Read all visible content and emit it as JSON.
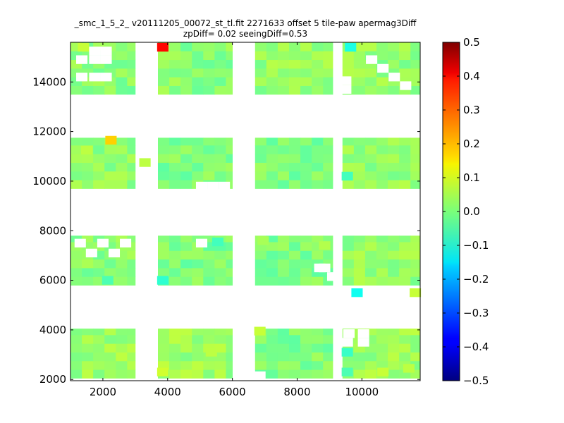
{
  "chart_data": {
    "type": "heatmap",
    "title": "_smc_1_5_2_ v20111205_00072_st_tl.fit 2271633 offset 5 tile-paw apermag3Diff\nzpDiff= 0.02 seeingDiff=0.53",
    "xlabel": "",
    "ylabel": "",
    "xlim": [
      1000,
      11800
    ],
    "ylim": [
      1950,
      15600
    ],
    "x_ticks": [
      2000,
      4000,
      6000,
      8000,
      10000
    ],
    "y_ticks": [
      2000,
      4000,
      6000,
      8000,
      10000,
      12000,
      14000
    ],
    "colorbar": {
      "vmin": -0.5,
      "vmax": 0.5,
      "ticks": [
        "0.5",
        "0.4",
        "0.3",
        "0.2",
        "0.1",
        "0.0",
        "−0.1",
        "−0.2",
        "−0.3",
        "−0.4",
        "−0.5"
      ],
      "colormap": "jet"
    },
    "cell_size": [
      350,
      350
    ],
    "grid": false,
    "blocks": [
      {
        "x": [
          1000,
          3000
        ],
        "y": [
          2050,
          4050
        ],
        "base": 0.03
      },
      {
        "x": [
          3700,
          6000
        ],
        "y": [
          2050,
          4050
        ],
        "base": 0.03
      },
      {
        "x": [
          6700,
          9100
        ],
        "y": [
          2050,
          4050
        ],
        "base": 0.0
      },
      {
        "x": [
          9400,
          11800
        ],
        "y": [
          2050,
          4050
        ],
        "base": 0.03
      },
      {
        "x": [
          1000,
          3000
        ],
        "y": [
          5800,
          7800
        ],
        "base": 0.01
      },
      {
        "x": [
          3700,
          6000
        ],
        "y": [
          5800,
          7800
        ],
        "base": 0.0
      },
      {
        "x": [
          6700,
          9100
        ],
        "y": [
          5800,
          7800
        ],
        "base": 0.0
      },
      {
        "x": [
          9400,
          11800
        ],
        "y": [
          5800,
          7800
        ],
        "base": 0.02
      },
      {
        "x": [
          1000,
          3000
        ],
        "y": [
          9700,
          11750
        ],
        "base": 0.02
      },
      {
        "x": [
          3700,
          6000
        ],
        "y": [
          9700,
          11750
        ],
        "base": 0.0
      },
      {
        "x": [
          6700,
          9100
        ],
        "y": [
          9700,
          11750
        ],
        "base": 0.0
      },
      {
        "x": [
          9400,
          11800
        ],
        "y": [
          9700,
          11750
        ],
        "base": 0.02
      },
      {
        "x": [
          1000,
          3000
        ],
        "y": [
          13500,
          15600
        ],
        "base": 0.01
      },
      {
        "x": [
          3700,
          6000
        ],
        "y": [
          13500,
          15600
        ],
        "base": 0.01
      },
      {
        "x": [
          6700,
          9100
        ],
        "y": [
          13500,
          15600
        ],
        "base": 0.02
      },
      {
        "x": [
          9400,
          11800
        ],
        "y": [
          13500,
          15600
        ],
        "base": 0.02
      }
    ],
    "cells": [
      {
        "x": 1400,
        "y": 15400,
        "v": 0.07
      },
      {
        "x": 3850,
        "y": 15400,
        "v": 0.37
      },
      {
        "x": 2250,
        "y": 11650,
        "v": 0.17
      },
      {
        "x": 1500,
        "y": 11250,
        "v": 0.06
      },
      {
        "x": 3300,
        "y": 10750,
        "v": 0.06
      },
      {
        "x": 3850,
        "y": 6000,
        "v": -0.08
      },
      {
        "x": 2150,
        "y": 6000,
        "v": -0.05
      },
      {
        "x": 5550,
        "y": 7550,
        "v": -0.06
      },
      {
        "x": 9650,
        "y": 15400,
        "v": -0.1
      },
      {
        "x": 9550,
        "y": 10200,
        "v": -0.06
      },
      {
        "x": 9850,
        "y": 5500,
        "v": -0.11
      },
      {
        "x": 11650,
        "y": 5500,
        "v": 0.07
      },
      {
        "x": 6850,
        "y": 3950,
        "v": 0.07
      },
      {
        "x": 5350,
        "y": 3100,
        "v": 0.06
      },
      {
        "x": 9550,
        "y": 3100,
        "v": -0.07
      },
      {
        "x": 9550,
        "y": 2300,
        "v": -0.05
      },
      {
        "x": 3850,
        "y": 2300,
        "v": 0.08
      },
      {
        "x": 11450,
        "y": 2450,
        "v": 0.06
      },
      {
        "x": 10650,
        "y": 2300,
        "v": 0.07
      },
      {
        "x": 8850,
        "y": 7400,
        "v": 0.05
      },
      {
        "x": 6950,
        "y": 7600,
        "v": 0.04
      }
    ],
    "holes": [
      {
        "x": 1750,
        "y": 14200
      },
      {
        "x": 2100,
        "y": 14200
      },
      {
        "x": 1350,
        "y": 14200
      },
      {
        "x": 1750,
        "y": 14900
      },
      {
        "x": 1750,
        "y": 15250
      },
      {
        "x": 2100,
        "y": 14900
      },
      {
        "x": 2100,
        "y": 15250
      },
      {
        "x": 1350,
        "y": 14900
      },
      {
        "x": 9500,
        "y": 13700
      },
      {
        "x": 9500,
        "y": 14050
      },
      {
        "x": 10300,
        "y": 14900
      },
      {
        "x": 10650,
        "y": 14550
      },
      {
        "x": 11000,
        "y": 14200
      },
      {
        "x": 11350,
        "y": 13850
      },
      {
        "x": 5750,
        "y": 9800
      },
      {
        "x": 5400,
        "y": 9800
      },
      {
        "x": 5050,
        "y": 9800
      },
      {
        "x": 1300,
        "y": 7500
      },
      {
        "x": 1650,
        "y": 7100
      },
      {
        "x": 2000,
        "y": 7500
      },
      {
        "x": 2350,
        "y": 7100
      },
      {
        "x": 2700,
        "y": 7500
      },
      {
        "x": 5050,
        "y": 7500
      },
      {
        "x": 9100,
        "y": 6150
      },
      {
        "x": 8850,
        "y": 6500
      },
      {
        "x": 8700,
        "y": 6500
      },
      {
        "x": 10050,
        "y": 3850
      },
      {
        "x": 10050,
        "y": 3500
      },
      {
        "x": 9600,
        "y": 3850
      },
      {
        "x": 9550,
        "y": 3500
      },
      {
        "x": 6850,
        "y": 2150
      }
    ]
  }
}
